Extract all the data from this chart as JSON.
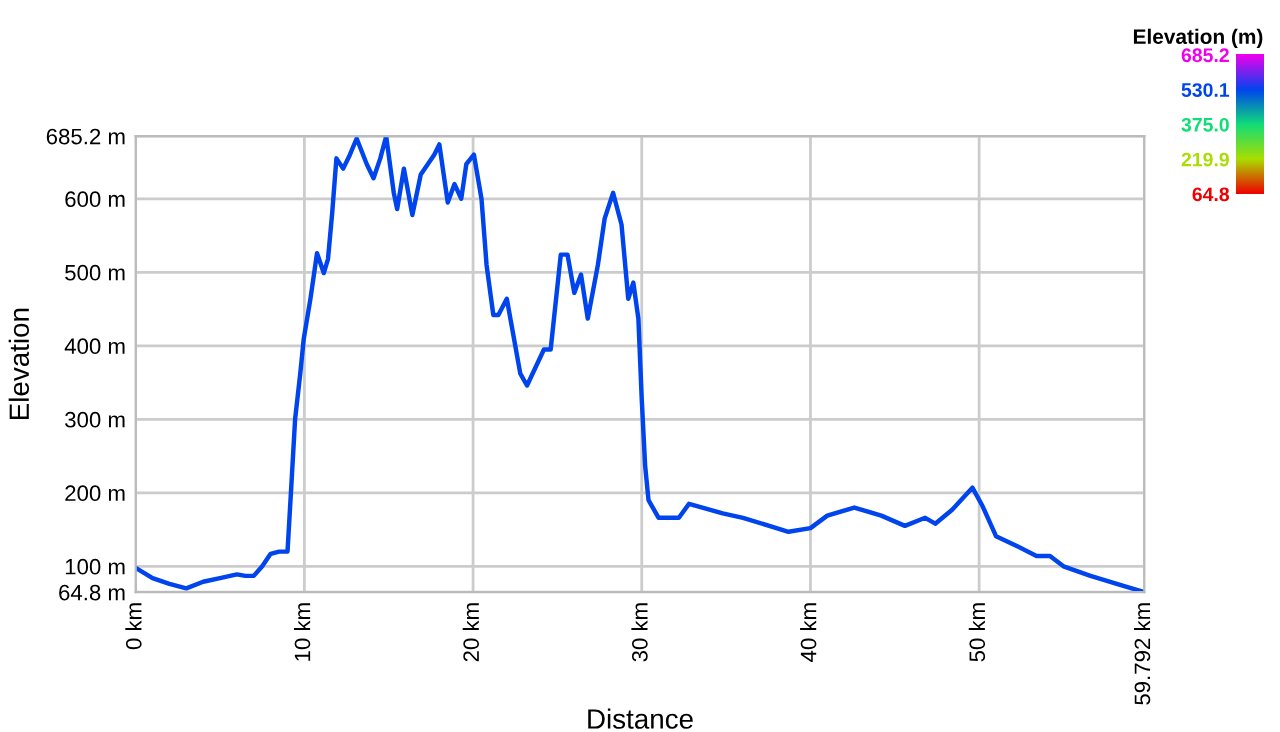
{
  "chart_data": {
    "type": "line",
    "xlabel": "Distance",
    "ylabel": "Elevation",
    "clabel": "Elevation (m)",
    "clim": [
      64.8,
      685.2
    ],
    "cticks": [
      685.2,
      530.1,
      {
        "value": 375,
        "label": "375.0"
      },
      219.9,
      64.8
    ],
    "colors": [
      "#ee00ee",
      "#0044ee",
      "#11dd77",
      "#aadd00",
      "#ee0000"
    ],
    "grid": true,
    "xlim": [
      0,
      59.792
    ],
    "xticks": [
      {
        "value": 0,
        "label": "0 km"
      },
      {
        "value": 10,
        "label": "10 km"
      },
      {
        "value": 20,
        "label": "20 km"
      },
      {
        "value": 30,
        "label": "30 km"
      },
      {
        "value": 40,
        "label": "40 km"
      },
      {
        "value": 50,
        "label": "50 km"
      },
      {
        "value": 59.792,
        "label": "59.792 km"
      }
    ],
    "ylim": [
      64.8,
      685.2
    ],
    "yticks": [
      {
        "value": 64.8,
        "label": "64.8 m"
      },
      {
        "value": 100,
        "label": "100 m"
      },
      {
        "value": 200,
        "label": "200 m"
      },
      {
        "value": 300,
        "label": "300 m"
      },
      {
        "value": 400,
        "label": "400 m"
      },
      {
        "value": 500,
        "label": "500 m"
      },
      {
        "value": 600,
        "label": "600 m"
      },
      {
        "value": 685.2,
        "label": "685.2 m"
      }
    ],
    "series": [
      {
        "color": "#0044ee",
        "x": [
          0,
          1,
          2,
          3,
          4,
          5,
          6,
          6.5,
          7,
          7.5,
          8,
          8.5,
          9,
          9.2,
          9.45,
          9.76,
          9.96,
          10.36,
          10.75,
          11.15,
          11.4,
          11.65,
          11.9,
          12.3,
          12.7,
          13.1,
          13.7,
          14.1,
          14.5,
          14.85,
          15.3,
          15.5,
          15.9,
          16.4,
          16.9,
          17.7,
          18,
          18.5,
          18.9,
          19.3,
          19.6,
          20.05,
          20.5,
          20.8,
          21.2,
          21.5,
          22,
          22.8,
          23.2,
          24.2,
          24.6,
          25.2,
          25.6,
          26,
          26.4,
          26.8,
          27.4,
          27.8,
          28.3,
          28.8,
          29.2,
          29.5,
          29.8,
          30,
          30.2,
          30.4,
          31,
          32.2,
          32.8,
          34.8,
          36,
          38.7,
          40,
          41,
          42.6,
          44.2,
          45.6,
          46.8,
          47.4,
          48.4,
          49.6,
          50.2,
          51,
          52.2,
          53.4,
          54.2,
          55,
          56.6,
          58.6,
          59.792
        ],
        "values": [
          98,
          84,
          76,
          70,
          79,
          84,
          89,
          87,
          87,
          100,
          117,
          120,
          120,
          199,
          300,
          363,
          409,
          464,
          526,
          499,
          518,
          581,
          655,
          641,
          660,
          682,
          647,
          628,
          655,
          685,
          608,
          586,
          641,
          578,
          633,
          660,
          674,
          595,
          620,
          600,
          647,
          660,
          600,
          510,
          442,
          442,
          464,
          362,
          346,
          395,
          395,
          524,
          524,
          472,
          497,
          437,
          510,
          573,
          608,
          565,
          464,
          486,
          437,
          327,
          237,
          190,
          166,
          166,
          185,
          172,
          166,
          147,
          152,
          169,
          180,
          169,
          155,
          166,
          158,
          177,
          207,
          182,
          141,
          128,
          114,
          114,
          100,
          87,
          73,
          65
        ]
      }
    ]
  }
}
